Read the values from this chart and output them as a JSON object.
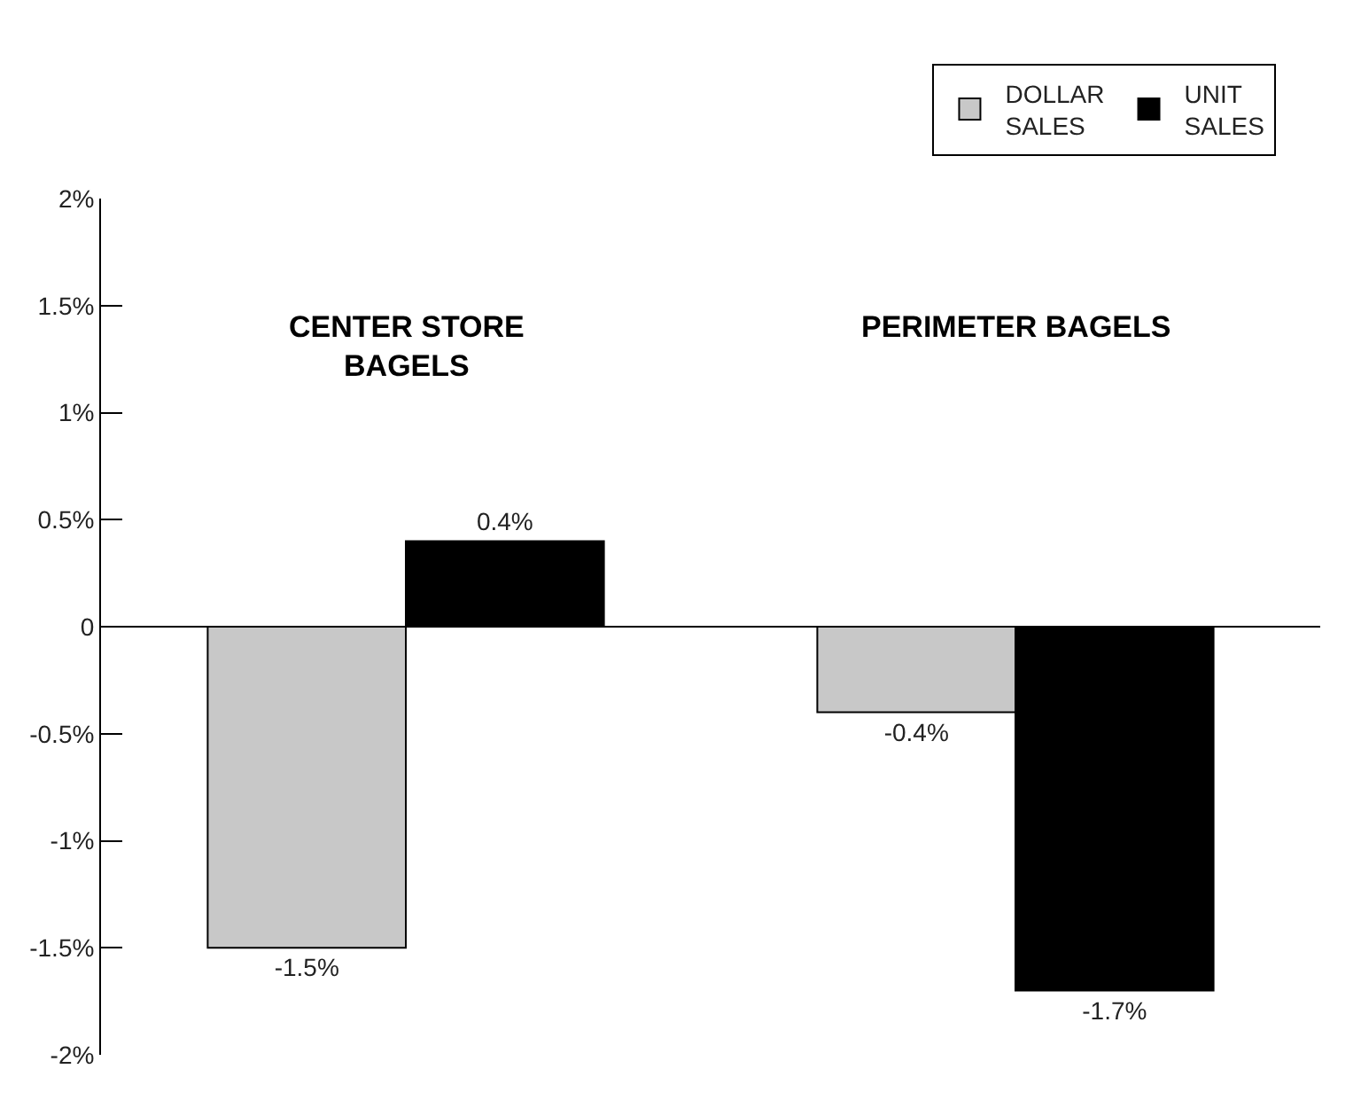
{
  "chart_data": {
    "type": "bar",
    "categories": [
      "CENTER STORE\nBAGELS",
      "PERIMETER BAGELS"
    ],
    "series": [
      {
        "name": "DOLLAR\nSALES",
        "color": "#c8c8c8",
        "values": [
          -1.5,
          -0.4
        ],
        "value_labels": [
          "-1.5%",
          "-0.4%"
        ]
      },
      {
        "name": "UNIT\nSALES",
        "color": "#000000",
        "values": [
          0.4,
          -1.7
        ],
        "value_labels": [
          "0.4%",
          "-1.7%"
        ]
      }
    ],
    "ylim": [
      -2,
      2
    ],
    "yticks": [
      {
        "value": 2,
        "label": "2%"
      },
      {
        "value": 1.5,
        "label": "1.5%"
      },
      {
        "value": 1,
        "label": "1%"
      },
      {
        "value": 0.5,
        "label": "0.5%"
      },
      0,
      {
        "value": -0.5,
        "label": "-0.5%"
      },
      {
        "value": -1,
        "label": "-1%"
      },
      {
        "value": -1.5,
        "label": "-1.5%"
      },
      {
        "value": -2,
        "label": "-2%"
      }
    ],
    "ref_lines": [
      {
        "axis": "y",
        "value": 0,
        "color": "#000000",
        "line_style": "solid"
      }
    ],
    "legend": "top right"
  }
}
